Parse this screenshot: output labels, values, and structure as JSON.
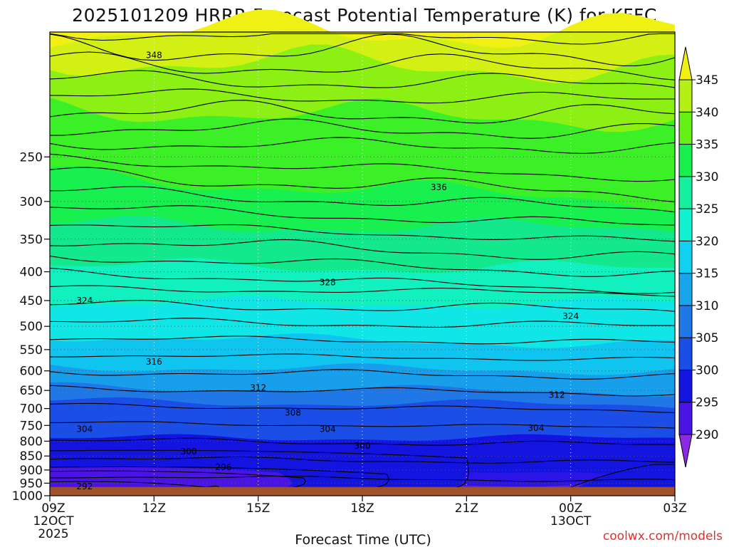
{
  "chart_data": {
    "type": "contour",
    "title": "2025101209 HRRR Forecast Potential Temperature (K) for KFFC",
    "xlabel": "Forecast Time (UTC)",
    "credit": "coolwx.com/models",
    "x_ticks": [
      {
        "lines": [
          "09Z",
          "12OCT",
          "2025"
        ]
      },
      {
        "lines": [
          "12Z"
        ]
      },
      {
        "lines": [
          "15Z"
        ]
      },
      {
        "lines": [
          "18Z"
        ]
      },
      {
        "lines": [
          "21Z"
        ]
      },
      {
        "lines": [
          "00Z",
          "13OCT"
        ]
      },
      {
        "lines": [
          "03Z"
        ]
      }
    ],
    "x_hours": [
      0,
      3,
      6,
      9,
      12,
      15,
      18
    ],
    "y_ticks": [
      250,
      300,
      350,
      400,
      450,
      500,
      550,
      600,
      650,
      700,
      750,
      800,
      850,
      900,
      950,
      1000
    ],
    "y_range_hpa": [
      1000,
      150
    ],
    "surface_hpa": 965,
    "grid": true,
    "colorbar": {
      "levels": [
        290,
        295,
        300,
        305,
        310,
        315,
        320,
        325,
        330,
        335,
        340,
        345
      ],
      "labels": [
        "290",
        "295",
        "300",
        "305",
        "310",
        "315",
        "320",
        "325",
        "330",
        "335",
        "340",
        "345"
      ],
      "colors": [
        "#8a2be2",
        "#4b14e6",
        "#1414e0",
        "#1a4ee6",
        "#1f78e6",
        "#17a6eb",
        "#10d2f0",
        "#12f0d2",
        "#14f0a0",
        "#18f050",
        "#64f014",
        "#b4f014",
        "#f0f014"
      ]
    },
    "contour_labels": [
      {
        "value": "348",
        "hour": 3.0,
        "hpa": 165
      },
      {
        "value": "336",
        "hour": 11.2,
        "hpa": 283
      },
      {
        "value": "328",
        "hour": 8.0,
        "hpa": 418
      },
      {
        "value": "324",
        "hour": 1.0,
        "hpa": 450
      },
      {
        "value": "324",
        "hour": 15.0,
        "hpa": 480
      },
      {
        "value": "316",
        "hour": 3.0,
        "hpa": 578
      },
      {
        "value": "312",
        "hour": 6.0,
        "hpa": 643
      },
      {
        "value": "312",
        "hour": 14.6,
        "hpa": 662
      },
      {
        "value": "308",
        "hour": 7.0,
        "hpa": 712
      },
      {
        "value": "304",
        "hour": 1.0,
        "hpa": 762
      },
      {
        "value": "304",
        "hour": 8.0,
        "hpa": 762
      },
      {
        "value": "304",
        "hour": 14.0,
        "hpa": 758
      },
      {
        "value": "300",
        "hour": 4.0,
        "hpa": 835
      },
      {
        "value": "300",
        "hour": 9.0,
        "hpa": 815
      },
      {
        "value": "296",
        "hour": 5.0,
        "hpa": 890
      },
      {
        "value": "292",
        "hour": 1.0,
        "hpa": 963
      }
    ]
  }
}
